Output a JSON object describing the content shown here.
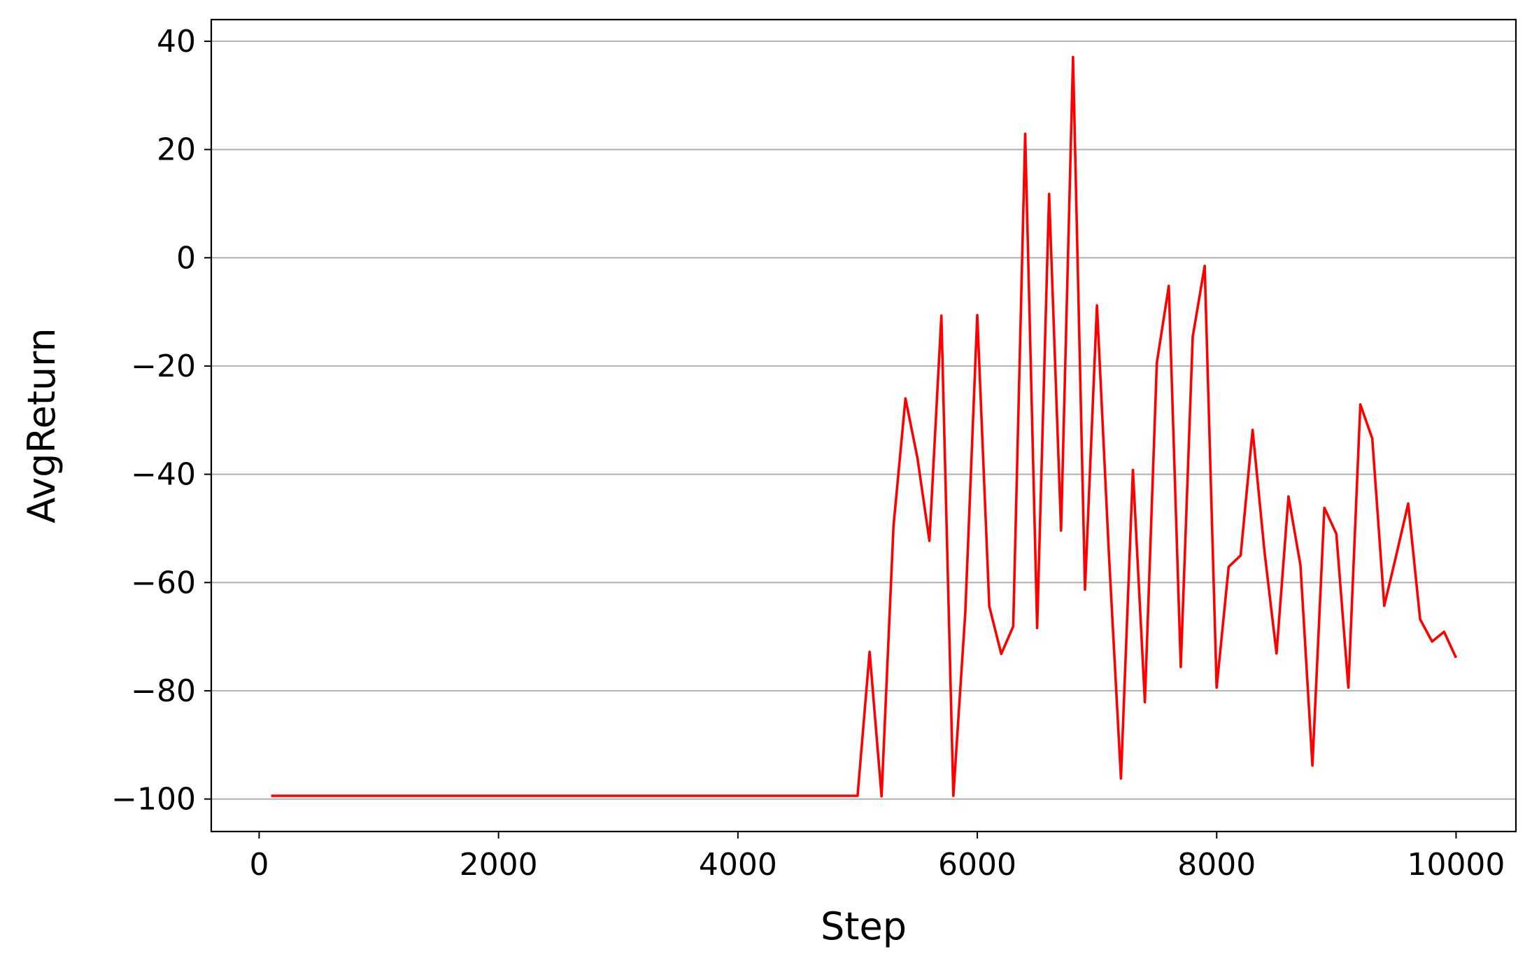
{
  "chart_data": {
    "type": "line",
    "title": "",
    "xlabel": "Step",
    "ylabel": "AvgReturn",
    "xlim": [
      -400,
      10500
    ],
    "ylim": [
      -106,
      44
    ],
    "xticks": [
      0,
      2000,
      4000,
      6000,
      8000,
      10000
    ],
    "xtick_labels": [
      "0",
      "2000",
      "4000",
      "6000",
      "8000",
      "10000"
    ],
    "yticks": [
      -100,
      -80,
      -60,
      -40,
      -20,
      0,
      20,
      40
    ],
    "ytick_labels": [
      "−100",
      "−80",
      "−60",
      "−40",
      "−20",
      "0",
      "20",
      "40"
    ],
    "grid": "y",
    "legend": false,
    "series": [
      {
        "color": "#ff0000",
        "x": [
          100,
          200,
          300,
          400,
          500,
          600,
          700,
          800,
          900,
          1000,
          1100,
          1200,
          1300,
          1400,
          1500,
          1600,
          1700,
          1800,
          1900,
          2000,
          2100,
          2200,
          2300,
          2400,
          2500,
          2600,
          2700,
          2800,
          2900,
          3000,
          3100,
          3200,
          3300,
          3400,
          3500,
          3600,
          3700,
          3800,
          3900,
          4000,
          4100,
          4200,
          4300,
          4400,
          4500,
          4600,
          4700,
          4800,
          4900,
          5000,
          5100,
          5200,
          5300,
          5400,
          5500,
          5600,
          5700,
          5800,
          5900,
          6000,
          6100,
          6200,
          6300,
          6400,
          6500,
          6600,
          6700,
          6800,
          6900,
          7000,
          7100,
          7200,
          7300,
          7400,
          7500,
          7600,
          7700,
          7800,
          7900,
          8000,
          8100,
          8200,
          8300,
          8400,
          8500,
          8600,
          8700,
          8800,
          8900,
          9000,
          9100,
          9200,
          9300,
          9400,
          9500,
          9600,
          9700,
          9800,
          9900,
          10000
        ],
        "y": [
          -99.4,
          -99.4,
          -99.4,
          -99.4,
          -99.4,
          -99.4,
          -99.4,
          -99.4,
          -99.4,
          -99.4,
          -99.4,
          -99.4,
          -99.4,
          -99.4,
          -99.4,
          -99.4,
          -99.4,
          -99.4,
          -99.4,
          -99.4,
          -99.4,
          -99.4,
          -99.4,
          -99.4,
          -99.4,
          -99.4,
          -99.4,
          -99.4,
          -99.4,
          -99.4,
          -99.4,
          -99.4,
          -99.4,
          -99.4,
          -99.4,
          -99.4,
          -99.4,
          -99.4,
          -99.4,
          -99.4,
          -99.4,
          -99.4,
          -99.4,
          -99.4,
          -99.4,
          -99.4,
          -99.4,
          -99.4,
          -99.4,
          -99.4,
          -72.8,
          -99.5,
          -49.5,
          -26.0,
          -37.0,
          -52.3,
          -10.7,
          -99.4,
          -65.5,
          -10.6,
          -64.4,
          -73.2,
          -68.1,
          22.9,
          -68.4,
          11.8,
          -50.4,
          37.1,
          -61.3,
          -8.8,
          -55.0,
          -96.2,
          -39.2,
          -82.1,
          -19.4,
          -5.2,
          -75.6,
          -14.6,
          -1.5,
          -79.4,
          -57.1,
          -55.0,
          -31.8,
          -54.4,
          -73.1,
          -44.1,
          -56.8,
          -93.8,
          -46.2,
          -51.0,
          -79.4,
          -27.1,
          -33.4,
          -64.3,
          -55.0,
          -45.4,
          -66.8,
          -70.9,
          -69.1,
          -73.9
        ]
      }
    ]
  }
}
